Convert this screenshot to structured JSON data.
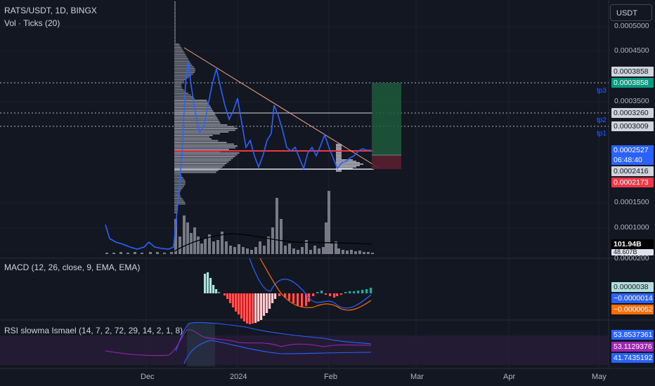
{
  "header": {
    "symbol": "RATS/USDT, 1D, BINGX",
    "volume_indicator": "Vol · Ticks (20)",
    "macd_title": "MACD (12, 26, close, 9, EMA, EMA)",
    "rsi_title": "RSI slowma Ismael (14, 7, 2, 72, 29, 14, 2, 1, 8)"
  },
  "currency_button": "USDT",
  "price_axis": [
    "0.0005000",
    "0.0004500",
    "0.0003500",
    "0.0001500",
    "0.0001000",
    "0.0000200"
  ],
  "price_tags": {
    "tp3_gray": "0.0003858",
    "tp3_green": "0.0003858",
    "level_3260": "0.0003260",
    "level_3009": "0.0003009",
    "current_price": "0.0002527",
    "countdown": "06:48:40",
    "level_2416": "0.0002416",
    "stop_red": "0.0002173",
    "volume_value": "101.94B",
    "volume_value_2": "48.607B",
    "macd_hist": "0.0000038",
    "macd_line": "−0.0000014",
    "macd_signal": "−0.0000052",
    "rsi_top": "53.8537361",
    "rsi_mid": "53.1129376",
    "rsi_bottom": "41.7435192"
  },
  "targets": [
    "tp3",
    "tp2",
    "tp1"
  ],
  "time_axis": [
    "Dec",
    "2024",
    "Feb",
    "Mar",
    "Apr",
    "May"
  ],
  "colors": {
    "background": "#131722",
    "price_line": "#2962ff",
    "trendline": "#f7a285",
    "support": "#f23645",
    "profit_zone": "#1e5a3a",
    "loss_zone": "#5a1e2e",
    "macd_up": "#b2dfdb",
    "macd_down": "#ff5252",
    "rsi_band": "#2a1e3a"
  }
}
